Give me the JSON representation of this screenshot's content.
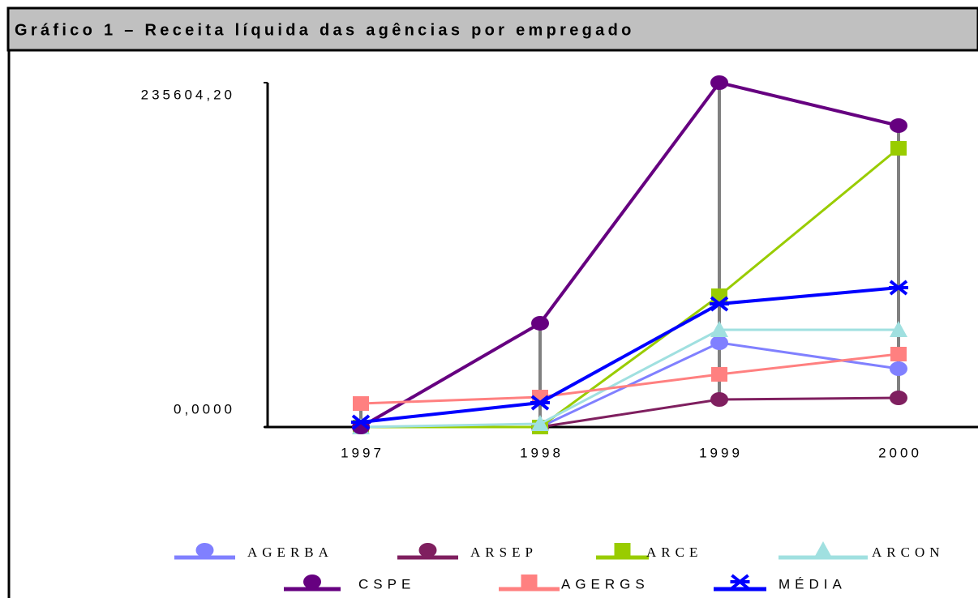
{
  "chart_data": {
    "type": "line",
    "title": "Gráfico 1 – Receita líquida das agências por empregado",
    "categories": [
      "1997",
      "1998",
      "1999",
      "2000"
    ],
    "ylim": [
      0,
      235604.2
    ],
    "yticks": [
      {
        "value": 0,
        "label": "0,0000"
      },
      {
        "value": 235604.2,
        "label": "235604,20"
      }
    ],
    "series": [
      {
        "name": "AGERBA",
        "color": "#8080ff",
        "marker": "circle",
        "values": [
          0,
          0,
          57653,
          39914
        ]
      },
      {
        "name": "ARSEP",
        "color": "#7f1f5f",
        "marker": "circle",
        "values": [
          0,
          0,
          18848,
          19957
        ]
      },
      {
        "name": "ARCE",
        "color": "#99cc00",
        "marker": "square",
        "values": [
          0,
          0,
          89806,
          190700
        ]
      },
      {
        "name": "ARCON",
        "color": "#a0e0e0",
        "marker": "triangle",
        "values": [
          0,
          2217,
          66523,
          66523
        ]
      },
      {
        "name": "CSPE",
        "color": "#660080",
        "marker": "circle",
        "values": [
          0,
          70960,
          235604.2,
          206220
        ]
      },
      {
        "name": "AGERGS",
        "color": "#ff8080",
        "marker": "square",
        "values": [
          16076,
          20511,
          36033,
          49892
        ]
      },
      {
        "name": "MÉDIA",
        "color": "#0000ff",
        "marker": "star",
        "values": [
          3326,
          16630,
          84263,
          95350
        ]
      }
    ]
  }
}
